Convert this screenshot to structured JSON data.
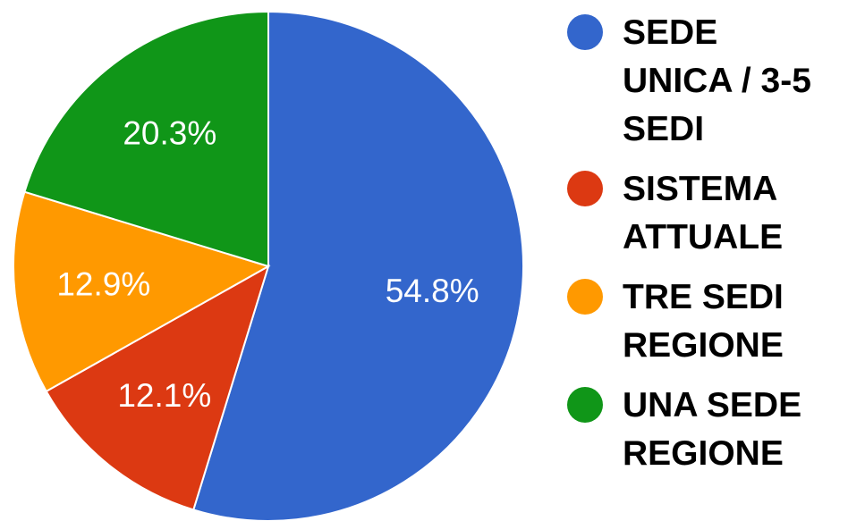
{
  "chart_data": {
    "type": "pie",
    "title": "",
    "slices": [
      {
        "label": "SEDE UNICA / 3-5 SEDI",
        "legend_lines": "SEDE\nUNICA / 3-5\nSEDI",
        "value": 54.8,
        "display": "54.8%",
        "color": "#3366cc"
      },
      {
        "label": "SISTEMA ATTUALE",
        "legend_lines": "SISTEMA\nATTUALE",
        "value": 12.1,
        "display": "12.1%",
        "color": "#dc3912"
      },
      {
        "label": "TRE SEDI REGIONE",
        "legend_lines": "TRE SEDI\nREGIONE",
        "value": 12.9,
        "display": "12.9%",
        "color": "#ff9900"
      },
      {
        "label": "UNA SEDE REGIONE",
        "legend_lines": "UNA SEDE\nREGIONE",
        "value": 20.3,
        "display": "20.3%",
        "color": "#109618"
      }
    ],
    "start": "top",
    "direction": "clockwise",
    "legend_position": "right"
  }
}
